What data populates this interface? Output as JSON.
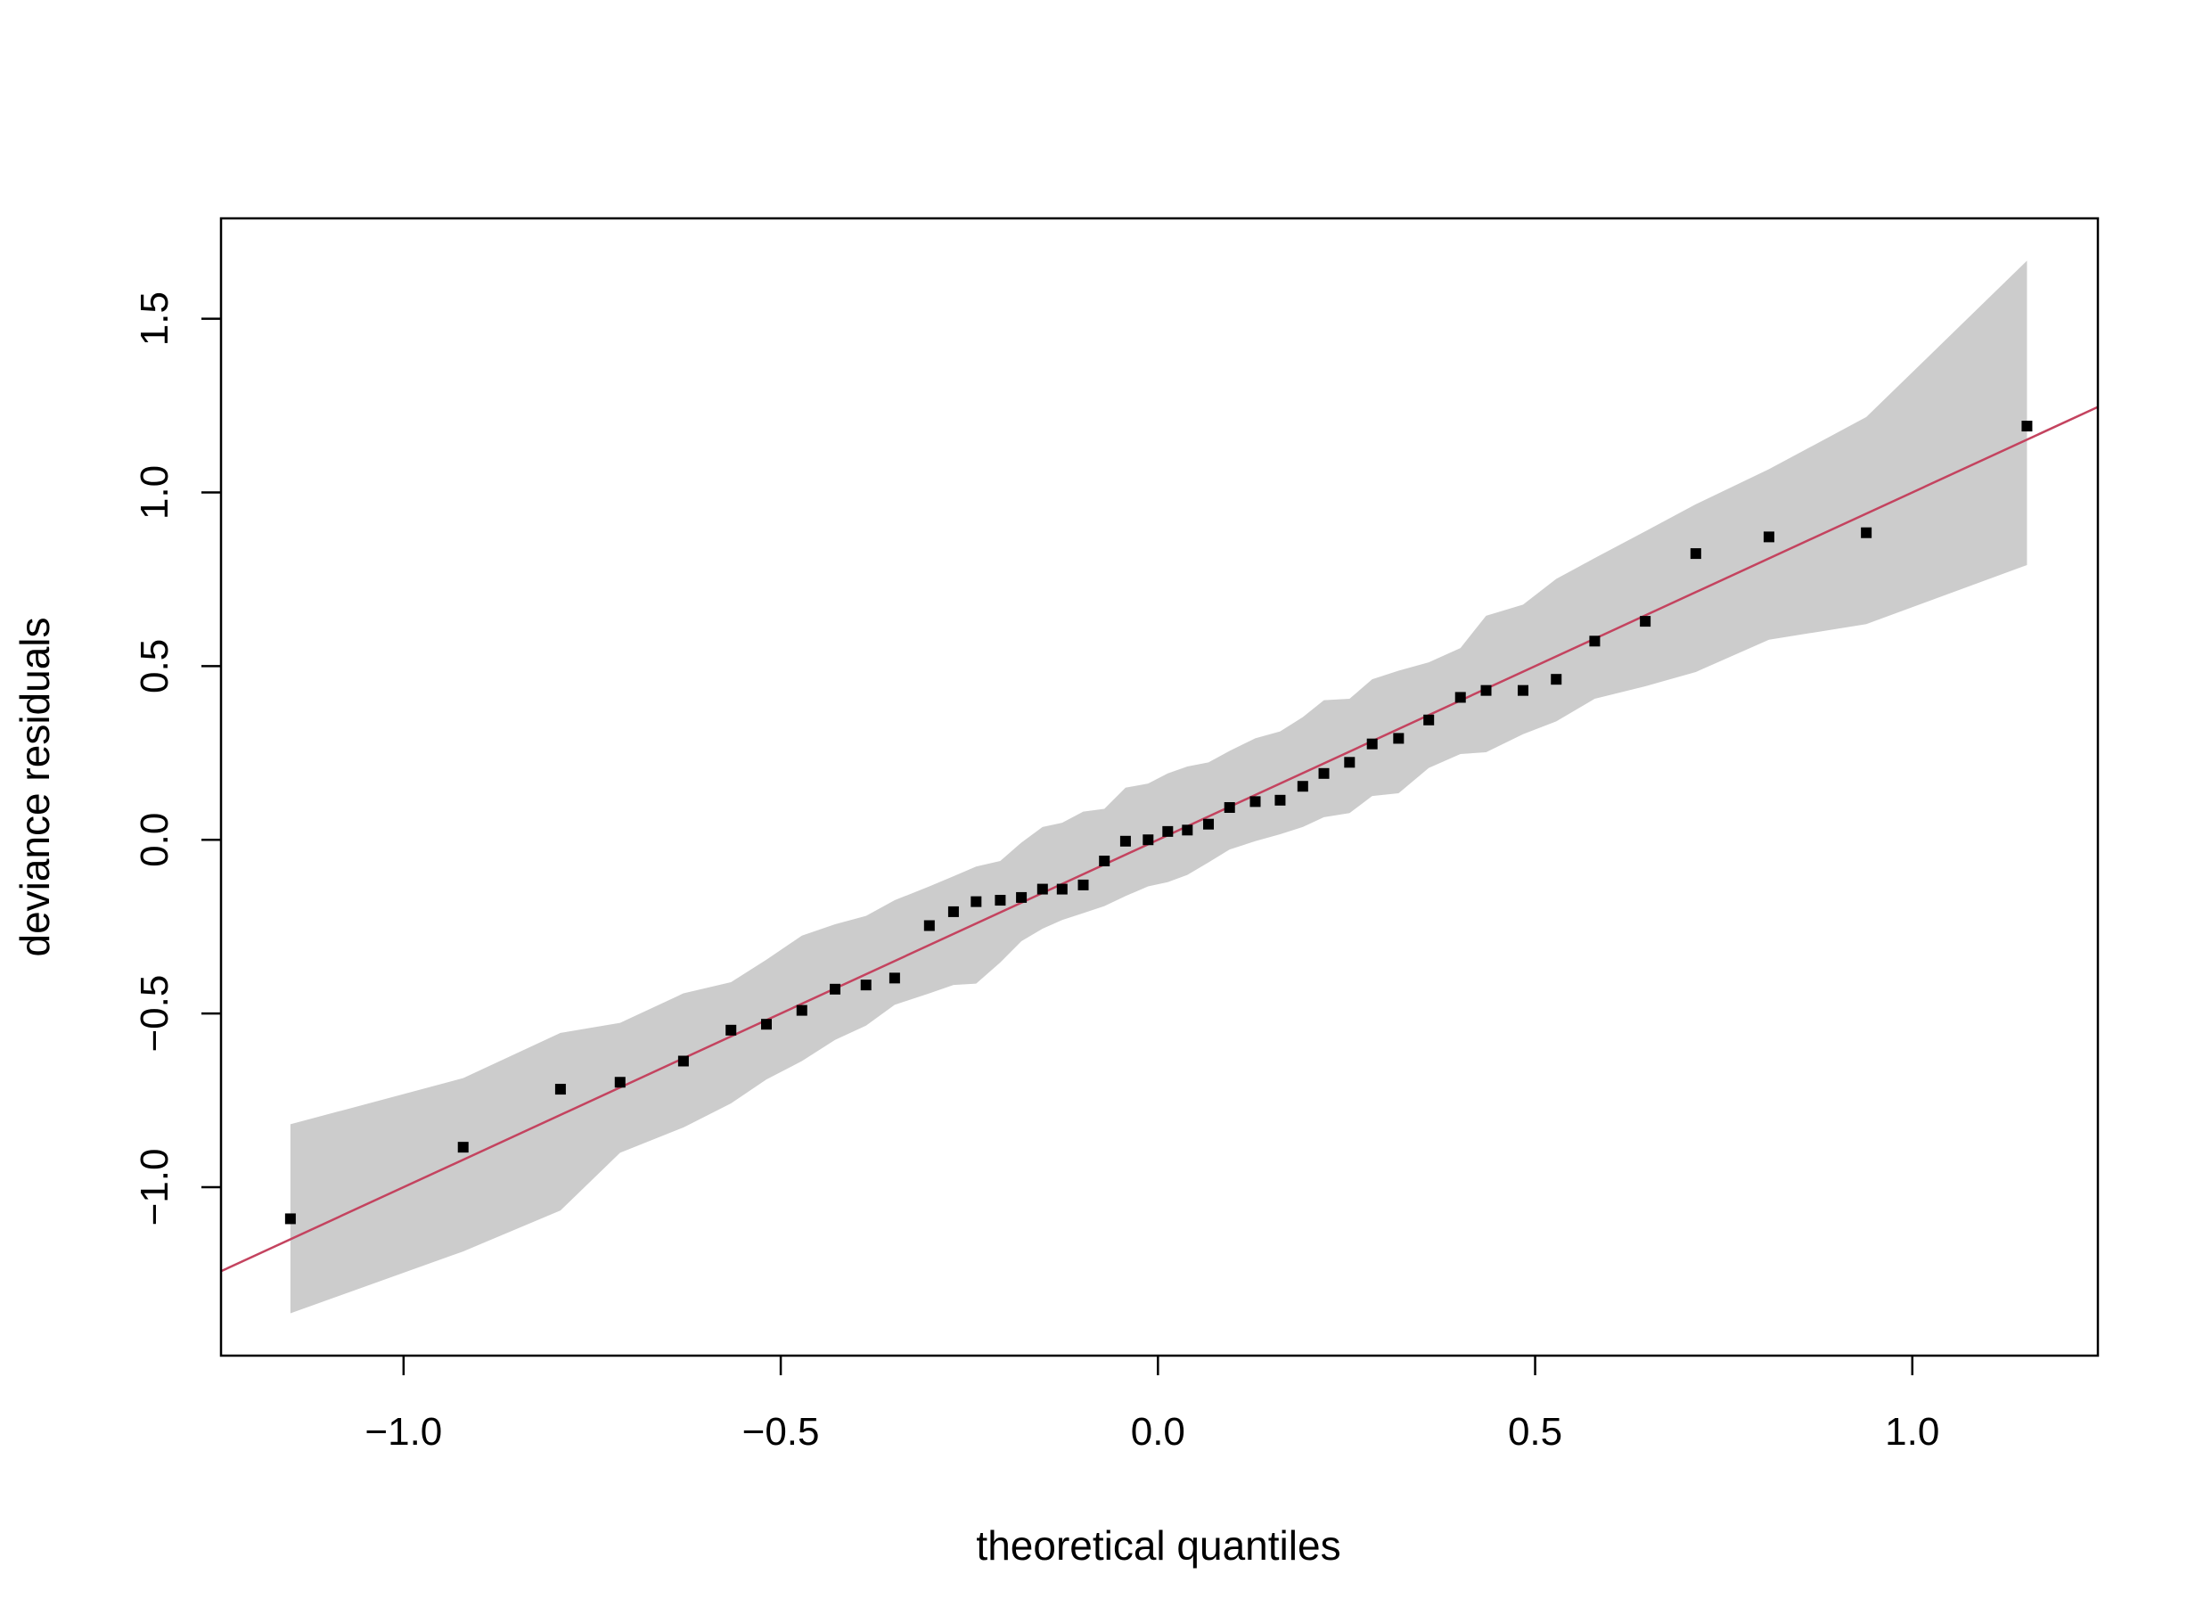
{
  "chart_data": {
    "type": "scatter",
    "title": "",
    "xlabel": "theoretical quantiles",
    "ylabel": "deviance residuals",
    "xlim": [
      -1.242,
      1.246
    ],
    "ylim": [
      -1.485,
      1.789
    ],
    "xticks": [
      -1.0,
      -0.5,
      0.0,
      0.5,
      1.0
    ],
    "xtick_labels": [
      "−1.0",
      "−0.5",
      "0.0",
      "0.5",
      "1.0"
    ],
    "yticks": [
      -1.0,
      -0.5,
      0.0,
      0.5,
      1.0,
      1.5
    ],
    "ytick_labels": [
      "−1.0",
      "−0.5",
      "0.0",
      "0.5",
      "1.0",
      "1.5"
    ],
    "grid": false,
    "colors": {
      "points": "#000000",
      "band": "#cccccc",
      "reference_line": "#c4435f"
    },
    "reference_line": {
      "intercept": 0.0,
      "slope": 1.0
    },
    "x": [
      -1.15,
      -0.921,
      -0.792,
      -0.713,
      -0.629,
      -0.566,
      -0.519,
      -0.472,
      -0.428,
      -0.387,
      -0.349,
      -0.303,
      -0.271,
      -0.241,
      -0.209,
      -0.181,
      -0.153,
      -0.127,
      -0.099,
      -0.071,
      -0.043,
      -0.013,
      0.013,
      0.039,
      0.067,
      0.095,
      0.129,
      0.162,
      0.192,
      0.22,
      0.254,
      0.284,
      0.319,
      0.359,
      0.401,
      0.435,
      0.484,
      0.528,
      0.579,
      0.646,
      0.713,
      0.81,
      0.939,
      1.152
    ],
    "y": [
      -1.091,
      -0.885,
      -0.718,
      -0.698,
      -0.637,
      -0.548,
      -0.531,
      -0.491,
      -0.43,
      -0.418,
      -0.398,
      -0.247,
      -0.207,
      -0.178,
      -0.174,
      -0.166,
      -0.142,
      -0.142,
      -0.13,
      -0.061,
      -0.004,
      0.0,
      0.024,
      0.028,
      0.045,
      0.093,
      0.11,
      0.114,
      0.154,
      0.191,
      0.223,
      0.276,
      0.292,
      0.345,
      0.41,
      0.43,
      0.43,
      0.462,
      0.572,
      0.629,
      0.824,
      0.872,
      0.884,
      1.191
    ],
    "band_upper": [
      -0.819,
      -0.686,
      -0.556,
      -0.527,
      -0.442,
      -0.41,
      -0.345,
      -0.276,
      -0.243,
      -0.219,
      -0.174,
      -0.134,
      -0.105,
      -0.077,
      -0.061,
      -0.008,
      0.037,
      0.049,
      0.081,
      0.089,
      0.15,
      0.162,
      0.191,
      0.211,
      0.223,
      0.256,
      0.292,
      0.312,
      0.353,
      0.402,
      0.406,
      0.462,
      0.487,
      0.511,
      0.552,
      0.645,
      0.677,
      0.751,
      0.811,
      0.888,
      0.966,
      1.067,
      1.217,
      1.667
    ],
    "band_lower": [
      -1.363,
      -1.185,
      -1.067,
      -0.901,
      -0.828,
      -0.759,
      -0.69,
      -0.637,
      -0.576,
      -0.535,
      -0.475,
      -0.442,
      -0.418,
      -0.414,
      -0.353,
      -0.292,
      -0.256,
      -0.231,
      -0.211,
      -0.191,
      -0.162,
      -0.134,
      -0.122,
      -0.101,
      -0.065,
      -0.028,
      -0.004,
      0.016,
      0.037,
      0.065,
      0.077,
      0.126,
      0.134,
      0.207,
      0.247,
      0.252,
      0.304,
      0.341,
      0.406,
      0.442,
      0.483,
      0.576,
      0.621,
      0.791
    ]
  }
}
